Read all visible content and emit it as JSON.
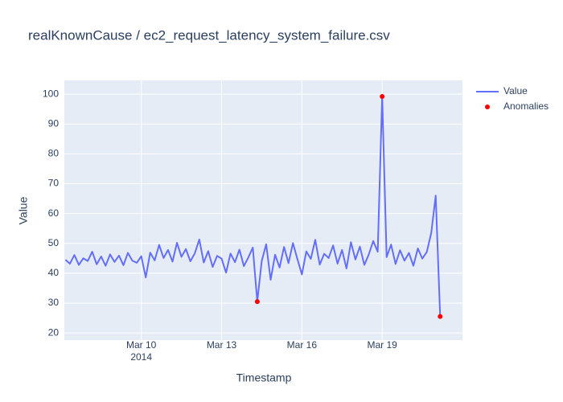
{
  "chart_data": {
    "type": "line",
    "title": "realKnownCause / ec2_request_latency_system_failure.csv",
    "x_label": "Timestamp",
    "y_label": "Value",
    "xlim": [
      "2014-03-07 03:00",
      "2014-03-22 00:00"
    ],
    "xticks": [
      {
        "value": "2014-03-10",
        "label": "Mar 10",
        "sublabel": "2014"
      },
      {
        "value": "2014-03-13",
        "label": "Mar 13"
      },
      {
        "value": "2014-03-16",
        "label": "Mar 16"
      },
      {
        "value": "2014-03-19",
        "label": "Mar 19"
      }
    ],
    "ylim": [
      17.6,
      104.6
    ],
    "yticks": [
      20,
      30,
      40,
      50,
      60,
      70,
      80,
      90,
      100
    ],
    "grid": true,
    "legend": "top-right",
    "series": [
      {
        "name": "Value",
        "color": "#636efa",
        "mode": "lines",
        "x": [
          "2014-03-07 04:00",
          "2014-03-07 08:00",
          "2014-03-07 12:00",
          "2014-03-07 16:00",
          "2014-03-07 20:00",
          "2014-03-08 00:00",
          "2014-03-08 04:00",
          "2014-03-08 08:00",
          "2014-03-08 12:00",
          "2014-03-08 16:00",
          "2014-03-08 20:00",
          "2014-03-09 00:00",
          "2014-03-09 04:00",
          "2014-03-09 08:00",
          "2014-03-09 12:00",
          "2014-03-09 16:00",
          "2014-03-09 20:00",
          "2014-03-10 00:00",
          "2014-03-10 04:00",
          "2014-03-10 08:00",
          "2014-03-10 12:00",
          "2014-03-10 16:00",
          "2014-03-10 20:00",
          "2014-03-11 00:00",
          "2014-03-11 04:00",
          "2014-03-11 08:00",
          "2014-03-11 12:00",
          "2014-03-11 16:00",
          "2014-03-11 20:00",
          "2014-03-12 00:00",
          "2014-03-12 04:00",
          "2014-03-12 08:00",
          "2014-03-12 12:00",
          "2014-03-12 16:00",
          "2014-03-12 20:00",
          "2014-03-13 00:00",
          "2014-03-13 04:00",
          "2014-03-13 08:00",
          "2014-03-13 12:00",
          "2014-03-13 16:00",
          "2014-03-13 20:00",
          "2014-03-14 00:00",
          "2014-03-14 04:00",
          "2014-03-14 08:00",
          "2014-03-14 12:00",
          "2014-03-14 16:00",
          "2014-03-14 20:00",
          "2014-03-15 00:00",
          "2014-03-15 04:00",
          "2014-03-15 08:00",
          "2014-03-15 12:00",
          "2014-03-15 16:00",
          "2014-03-15 20:00",
          "2014-03-16 00:00",
          "2014-03-16 04:00",
          "2014-03-16 08:00",
          "2014-03-16 12:00",
          "2014-03-16 16:00",
          "2014-03-16 20:00",
          "2014-03-17 00:00",
          "2014-03-17 04:00",
          "2014-03-17 08:00",
          "2014-03-17 12:00",
          "2014-03-17 16:00",
          "2014-03-17 20:00",
          "2014-03-18 00:00",
          "2014-03-18 04:00",
          "2014-03-18 08:00",
          "2014-03-18 12:00",
          "2014-03-18 16:00",
          "2014-03-18 20:00",
          "2014-03-19 00:00",
          "2014-03-19 04:00",
          "2014-03-19 08:00",
          "2014-03-19 12:00",
          "2014-03-19 16:00",
          "2014-03-19 20:00",
          "2014-03-20 00:00",
          "2014-03-20 04:00",
          "2014-03-20 08:00",
          "2014-03-20 12:00",
          "2014-03-20 16:00",
          "2014-03-20 20:00",
          "2014-03-21 00:00",
          "2014-03-21 04:00"
        ],
        "values": [
          44.5,
          43.2,
          46.1,
          42.8,
          45.0,
          44.1,
          47.2,
          43.0,
          45.6,
          42.5,
          46.3,
          43.8,
          45.9,
          42.7,
          46.8,
          44.2,
          43.5,
          45.7,
          38.6,
          46.9,
          44.3,
          49.5,
          45.1,
          47.8,
          43.9,
          50.2,
          45.5,
          48.1,
          44.0,
          46.7,
          51.3,
          43.6,
          47.4,
          42.1,
          45.8,
          44.9,
          40.2,
          46.6,
          43.7,
          47.9,
          42.4,
          45.3,
          48.6,
          30.5,
          44.1,
          49.7,
          37.8,
          46.2,
          41.9,
          48.8,
          43.4,
          50.1,
          44.7,
          39.6,
          47.3,
          44.8,
          51.2,
          42.9,
          46.5,
          45.1,
          49.3,
          43.2,
          47.8,
          41.6,
          50.4,
          44.6,
          48.9,
          42.8,
          46.3,
          50.8,
          47.2,
          99.2,
          45.4,
          49.6,
          43.1,
          47.7,
          44.2,
          46.8,
          42.5,
          48.3,
          44.9,
          47.1,
          53.5,
          66.0,
          25.5
        ]
      },
      {
        "name": "Anomalies",
        "color": "#ff0000",
        "mode": "markers",
        "x": [
          "2014-03-14 08:00",
          "2014-03-19 00:00",
          "2014-03-21 04:00"
        ],
        "values": [
          30.5,
          99.2,
          25.5
        ]
      }
    ]
  }
}
